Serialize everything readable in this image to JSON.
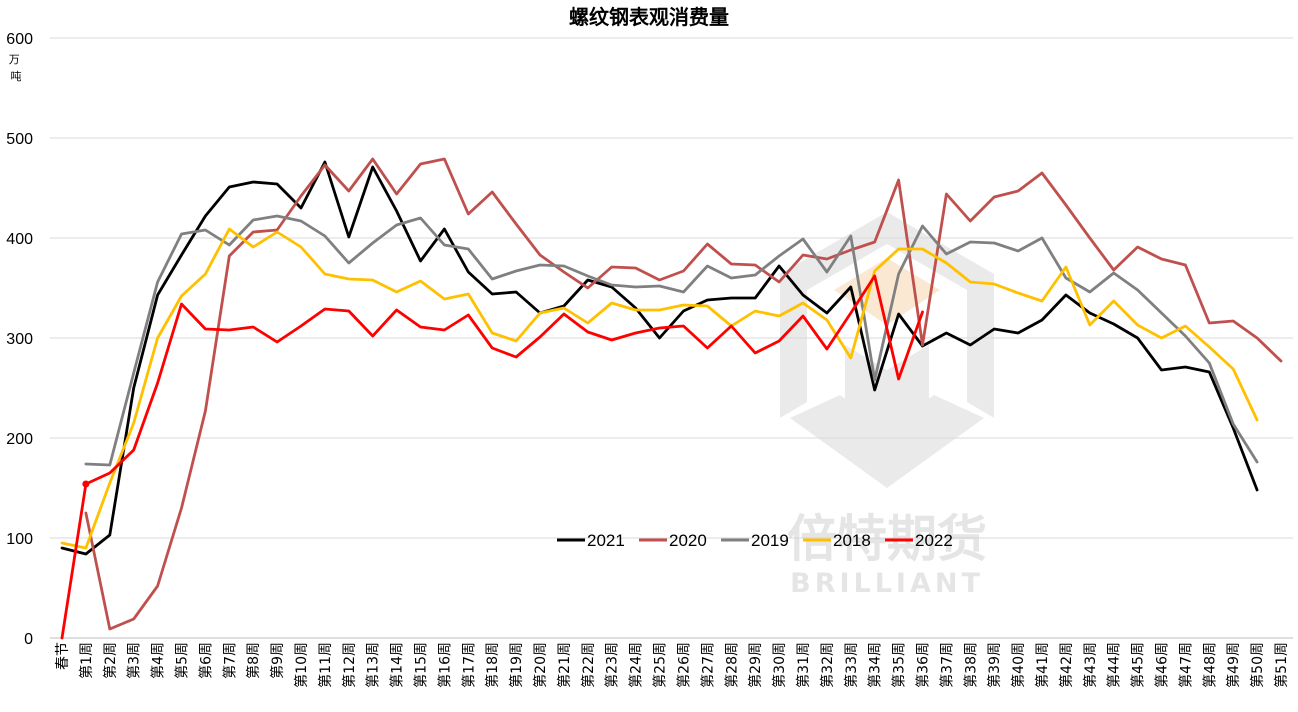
{
  "chart_data": {
    "type": "line",
    "title": "螺纹钢表观消费量",
    "ylabel": "万\n吨",
    "xlabel": "",
    "ylim": [
      0,
      600
    ],
    "yticks": [
      0,
      100,
      200,
      300,
      400,
      500,
      600
    ],
    "grid": true,
    "legend_position": "center-bottom",
    "categories": [
      "春节",
      "第1周",
      "第2周",
      "第3周",
      "第4周",
      "第5周",
      "第6周",
      "第7周",
      "第8周",
      "第9周",
      "第10周",
      "第11周",
      "第12周",
      "第13周",
      "第14周",
      "第15周",
      "第16周",
      "第17周",
      "第18周",
      "第19周",
      "第20周",
      "第21周",
      "第22周",
      "第23周",
      "第24周",
      "第25周",
      "第26周",
      "第27周",
      "第28周",
      "第29周",
      "第30周",
      "第31周",
      "第32周",
      "第33周",
      "第34周",
      "第35周",
      "第36周",
      "第37周",
      "第38周",
      "第39周",
      "第40周",
      "第41周",
      "第42周",
      "第43周",
      "第44周",
      "第45周",
      "第46周",
      "第47周",
      "第48周",
      "第49周",
      "第50周",
      "第51周"
    ],
    "series": [
      {
        "name": "2021",
        "color": "#000000",
        "values": [
          90,
          84,
          103,
          250,
          343,
          383,
          422,
          451,
          456,
          454,
          430,
          476,
          401,
          471,
          427,
          377,
          409,
          366,
          344,
          346,
          325,
          332,
          358,
          351,
          330,
          300,
          327,
          338,
          340,
          340,
          372,
          343,
          325,
          351,
          248,
          324,
          292,
          305,
          293,
          309,
          305,
          318,
          343,
          325,
          314,
          300,
          268,
          271,
          266,
          210,
          148,
          null
        ]
      },
      {
        "name": "2020",
        "color": "#c0504d",
        "values": [
          null,
          125,
          9,
          19,
          52,
          130,
          227,
          382,
          406,
          408,
          442,
          473,
          447,
          479,
          444,
          474,
          479,
          424,
          446,
          414,
          383,
          366,
          350,
          371,
          370,
          358,
          367,
          394,
          374,
          373,
          356,
          383,
          379,
          388,
          396,
          458,
          293,
          444,
          417,
          441,
          447,
          465,
          433,
          400,
          368,
          391,
          379,
          373,
          315,
          317,
          300,
          277
        ]
      },
      {
        "name": "2019",
        "color": "#808080",
        "values": [
          null,
          174,
          173,
          265,
          356,
          404,
          408,
          393,
          418,
          422,
          417,
          402,
          375,
          395,
          413,
          420,
          393,
          389,
          359,
          367,
          373,
          372,
          362,
          353,
          351,
          352,
          346,
          372,
          360,
          363,
          382,
          399,
          366,
          402,
          258,
          364,
          412,
          384,
          396,
          395,
          387,
          400,
          360,
          346,
          365,
          348,
          325,
          302,
          275,
          214,
          176,
          null
        ]
      },
      {
        "name": "2018",
        "color": "#ffc000",
        "values": [
          95,
          90,
          155,
          215,
          300,
          342,
          364,
          409,
          391,
          406,
          391,
          364,
          359,
          358,
          346,
          357,
          339,
          344,
          305,
          297,
          325,
          330,
          315,
          335,
          328,
          328,
          333,
          332,
          312,
          327,
          322,
          335,
          318,
          280,
          367,
          389,
          389,
          375,
          356,
          354,
          345,
          337,
          371,
          313,
          337,
          313,
          300,
          312,
          291,
          269,
          218,
          null
        ]
      },
      {
        "name": "2022",
        "color": "#ff0000",
        "values": [
          0,
          154,
          165,
          188,
          255,
          334,
          309,
          308,
          311,
          296,
          312,
          329,
          327,
          302,
          328,
          311,
          308,
          323,
          290,
          281,
          301,
          324,
          306,
          298,
          305,
          310,
          312,
          290,
          312,
          285,
          297,
          322,
          289,
          325,
          362,
          259,
          326,
          null,
          null,
          null,
          null,
          null,
          null,
          null,
          null,
          null,
          null,
          null,
          null,
          null,
          null,
          null
        ]
      }
    ]
  },
  "watermark": {
    "brand_cn": "倍特期货",
    "brand_en": "BRILLIANT"
  }
}
